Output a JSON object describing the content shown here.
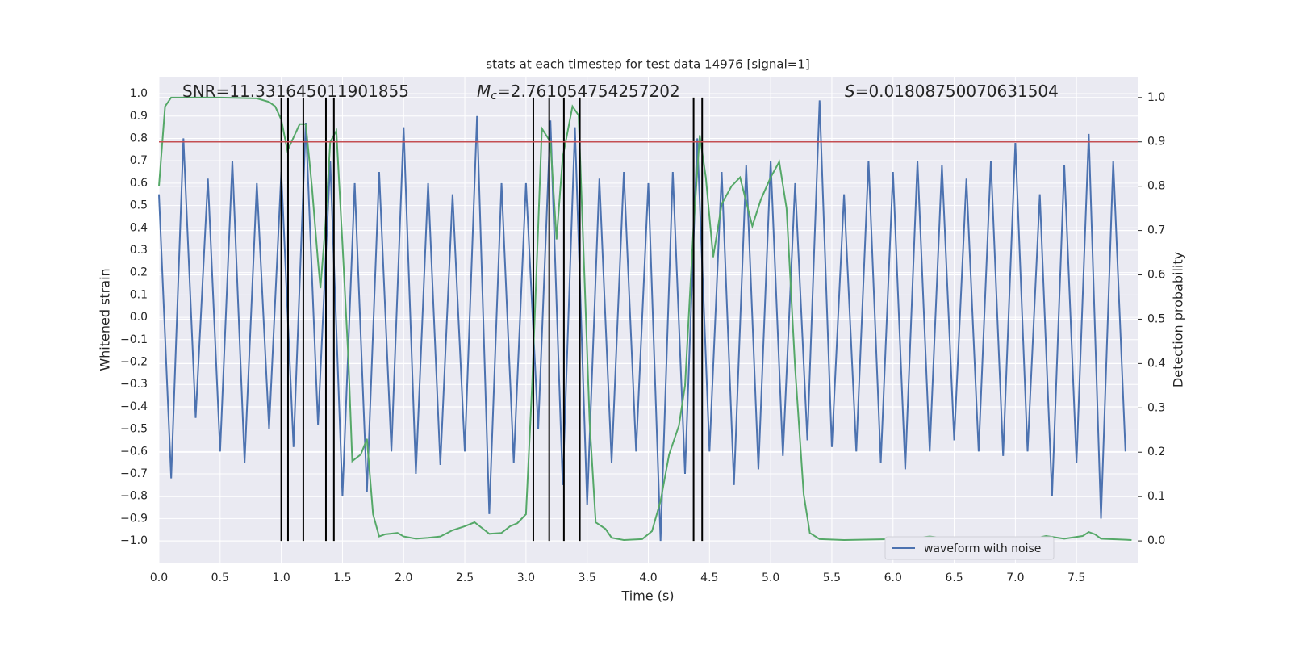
{
  "chart_data": {
    "type": "line",
    "title": "stats at each timestep for test data 14976 [signal=1]",
    "xlabel": "Time (s)",
    "ylabel": "Whitened strain",
    "y2label": "Detection probability",
    "annotations": [
      {
        "text": "SNR=11.331645011901855"
      },
      {
        "symbol": "M",
        "sub": "c",
        "text": "=2.761054754257202"
      },
      {
        "symbol": "S",
        "text": "=0.01808750070631504"
      }
    ],
    "xlim": [
      0,
      8.0
    ],
    "ylim": [
      -1.097,
      1.076
    ],
    "y2lim": [
      -0.049,
      1.047
    ],
    "xticks": [
      {
        "value": 0,
        "label": "0.0"
      },
      0.5,
      {
        "value": 1,
        "label": "1.0"
      },
      1.5,
      {
        "value": 2,
        "label": "2.0"
      },
      2.5,
      {
        "value": 3,
        "label": "3.0"
      },
      3.5,
      {
        "value": 4,
        "label": "4.0"
      },
      4.5,
      {
        "value": 5,
        "label": "5.0"
      },
      5.5,
      {
        "value": 6,
        "label": "6.0"
      },
      6.5,
      {
        "value": 7,
        "label": "7.0"
      },
      7.5
    ],
    "yticks": [
      {
        "value": -1,
        "label": "−1.0"
      },
      {
        "value": -0.9,
        "label": "−0.9"
      },
      {
        "value": -0.8,
        "label": "−0.8"
      },
      {
        "value": -0.7,
        "label": "−0.7"
      },
      {
        "value": -0.6,
        "label": "−0.6"
      },
      {
        "value": -0.5,
        "label": "−0.5"
      },
      {
        "value": -0.4,
        "label": "−0.4"
      },
      {
        "value": -0.3,
        "label": "−0.3"
      },
      {
        "value": -0.2,
        "label": "−0.2"
      },
      {
        "value": -0.1,
        "label": "−0.1"
      },
      {
        "value": 0,
        "label": "0.0"
      },
      0.1,
      0.2,
      0.3,
      0.4,
      0.5,
      0.6,
      0.7,
      0.8,
      0.9,
      {
        "value": 1,
        "label": "1.0"
      }
    ],
    "y2ticks": [
      {
        "value": 0,
        "label": "0.0"
      },
      0.1,
      0.2,
      0.3,
      0.4,
      0.5,
      0.6,
      0.7,
      0.8,
      0.9,
      {
        "value": 1,
        "label": "1.0"
      }
    ],
    "grid": true,
    "legend": "lower right",
    "series": [
      {
        "name": "waveform with noise",
        "color": "#4c72b0",
        "x": [
          0.0,
          0.1,
          0.2,
          0.3,
          0.4,
          0.5,
          0.6,
          0.7,
          0.8,
          0.9,
          1.0,
          1.1,
          1.2,
          1.3,
          1.4,
          1.5,
          1.6,
          1.7,
          1.8,
          1.9,
          2.0,
          2.1,
          2.2,
          2.3,
          2.4,
          2.5,
          2.6,
          2.7,
          2.8,
          2.9,
          3.0,
          3.1,
          3.2,
          3.3,
          3.4,
          3.5,
          3.6,
          3.7,
          3.8,
          3.9,
          4.0,
          4.1,
          4.2,
          4.3,
          4.4,
          4.5,
          4.6,
          4.7,
          4.8,
          4.9,
          5.0,
          5.1,
          5.2,
          5.3,
          5.4,
          5.5,
          5.6,
          5.7,
          5.8,
          5.9,
          6.0,
          6.1,
          6.2,
          6.3,
          6.4,
          6.5,
          6.6,
          6.7,
          6.8,
          6.9,
          7.0,
          7.1,
          7.2,
          7.3,
          7.4,
          7.5,
          7.6,
          7.7,
          7.8,
          7.9
        ],
        "values": [
          0.55,
          -0.72,
          0.8,
          -0.45,
          0.62,
          -0.6,
          0.7,
          -0.65,
          0.6,
          -0.5,
          0.65,
          -0.58,
          0.87,
          -0.48,
          0.7,
          -0.8,
          0.6,
          -0.78,
          0.65,
          -0.6,
          0.85,
          -0.7,
          0.6,
          -0.66,
          0.55,
          -0.6,
          0.9,
          -0.88,
          0.6,
          -0.65,
          0.6,
          -0.5,
          0.88,
          -0.75,
          0.85,
          -0.84,
          0.62,
          -0.65,
          0.65,
          -0.6,
          0.6,
          -1.0,
          0.65,
          -0.7,
          0.8,
          -0.6,
          0.65,
          -0.75,
          0.68,
          -0.68,
          0.7,
          -0.62,
          0.6,
          -0.55,
          0.97,
          -0.58,
          0.55,
          -0.6,
          0.7,
          -0.65,
          0.65,
          -0.68,
          0.7,
          -0.6,
          0.68,
          -0.55,
          0.62,
          -0.6,
          0.7,
          -0.62,
          0.78,
          -0.6,
          0.55,
          -0.8,
          0.68,
          -0.65,
          0.82,
          -0.9,
          0.7,
          -0.6
        ]
      },
      {
        "color": "#55a868",
        "axis": "y2",
        "x": [
          0.0,
          0.05,
          0.1,
          0.5,
          0.8,
          0.9,
          0.95,
          1.0,
          1.05,
          1.1,
          1.15,
          1.2,
          1.25,
          1.3,
          1.32,
          1.36,
          1.4,
          1.45,
          1.5,
          1.55,
          1.58,
          1.65,
          1.7,
          1.75,
          1.8,
          1.85,
          1.95,
          2.0,
          2.1,
          2.2,
          2.3,
          2.4,
          2.5,
          2.58,
          2.65,
          2.7,
          2.8,
          2.87,
          2.93,
          3.0,
          3.05,
          3.1,
          3.13,
          3.2,
          3.25,
          3.3,
          3.38,
          3.43,
          3.48,
          3.52,
          3.57,
          3.65,
          3.7,
          3.8,
          3.95,
          4.03,
          4.1,
          4.17,
          4.25,
          4.3,
          4.37,
          4.42,
          4.47,
          4.53,
          4.6,
          4.68,
          4.75,
          4.85,
          4.92,
          5.0,
          5.07,
          5.13,
          5.2,
          5.27,
          5.32,
          5.4,
          5.6,
          6.0,
          6.2,
          6.3,
          6.5,
          7.0,
          7.15,
          7.25,
          7.4,
          7.55,
          7.6,
          7.65,
          7.7,
          7.95
        ],
        "values": [
          0.8,
          0.98,
          1.0,
          1.0,
          0.998,
          0.99,
          0.98,
          0.95,
          0.88,
          0.91,
          0.94,
          0.94,
          0.8,
          0.63,
          0.57,
          0.71,
          0.9,
          0.925,
          0.67,
          0.4,
          0.18,
          0.195,
          0.23,
          0.06,
          0.01,
          0.015,
          0.018,
          0.01,
          0.005,
          0.007,
          0.01,
          0.024,
          0.033,
          0.042,
          0.027,
          0.016,
          0.018,
          0.033,
          0.04,
          0.06,
          0.35,
          0.71,
          0.93,
          0.9,
          0.68,
          0.865,
          0.98,
          0.96,
          0.58,
          0.27,
          0.042,
          0.027,
          0.007,
          0.002,
          0.004,
          0.022,
          0.09,
          0.195,
          0.26,
          0.35,
          0.71,
          0.915,
          0.82,
          0.64,
          0.76,
          0.8,
          0.82,
          0.71,
          0.77,
          0.82,
          0.855,
          0.75,
          0.39,
          0.105,
          0.018,
          0.004,
          0.002,
          0.004,
          0.007,
          0.01,
          0.004,
          0.004,
          0.005,
          0.011,
          0.005,
          0.011,
          0.02,
          0.015,
          0.005,
          0.002
        ]
      }
    ],
    "hlines": [
      {
        "value": 0.9,
        "axis": "y2",
        "color": "#c44e52"
      }
    ],
    "vlines": {
      "color": "#000000",
      "x": [
        1.0,
        1.055,
        1.18,
        1.365,
        1.43,
        3.06,
        3.19,
        3.31,
        3.44,
        4.37,
        4.44
      ]
    }
  }
}
